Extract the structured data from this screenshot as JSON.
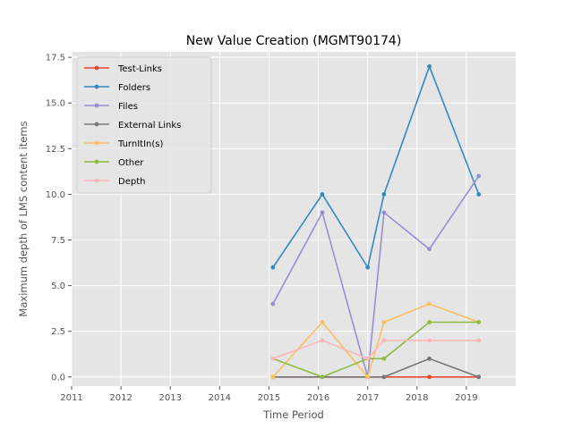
{
  "chart_data": {
    "type": "line",
    "title": "New Value Creation (MGMT90174)",
    "xlabel": "Time Period",
    "ylabel": "Maximum depth of LMS content items",
    "xlim": [
      2011,
      2020.0
    ],
    "ylim": [
      -0.5,
      17.8
    ],
    "xticks": [
      2011,
      2012,
      2013,
      2014,
      2015,
      2016,
      2017,
      2018,
      2019
    ],
    "yticks": [
      0.0,
      2.5,
      5.0,
      7.5,
      10.0,
      12.5,
      15.0,
      17.5
    ],
    "xtick_labels": [
      "2011",
      "2012",
      "2013",
      "2014",
      "2015",
      "2016",
      "2017",
      "2018",
      "2019"
    ],
    "ytick_labels": [
      "0.0",
      "2.5",
      "5.0",
      "7.5",
      "10.0",
      "12.5",
      "15.0",
      "17.5"
    ],
    "grid": true,
    "legend_position": "top-left",
    "x": [
      2015.08,
      2016.08,
      2017.0,
      2017.33,
      2018.25,
      2019.25
    ],
    "series": [
      {
        "name": "Test-Links",
        "color": "#E24A33",
        "values": [
          0,
          0,
          0,
          0,
          0,
          0
        ]
      },
      {
        "name": "Folders",
        "color": "#348ABD",
        "values": [
          6,
          10,
          6,
          10,
          17,
          10
        ]
      },
      {
        "name": "Files",
        "color": "#988ED5",
        "values": [
          4,
          9,
          0,
          9,
          7,
          11
        ]
      },
      {
        "name": "External Links",
        "color": "#777777",
        "values": [
          0,
          0,
          0,
          0,
          1,
          0
        ]
      },
      {
        "name": "TurnItIn(s)",
        "color": "#FBC15E",
        "values": [
          0,
          3,
          0,
          3,
          4,
          3
        ]
      },
      {
        "name": "Other",
        "color": "#8EBA42",
        "values": [
          1,
          0,
          1,
          1,
          3,
          3
        ]
      },
      {
        "name": "Depth",
        "color": "#FFB5B8",
        "values": [
          1,
          2,
          1,
          2,
          2,
          2
        ]
      }
    ]
  }
}
